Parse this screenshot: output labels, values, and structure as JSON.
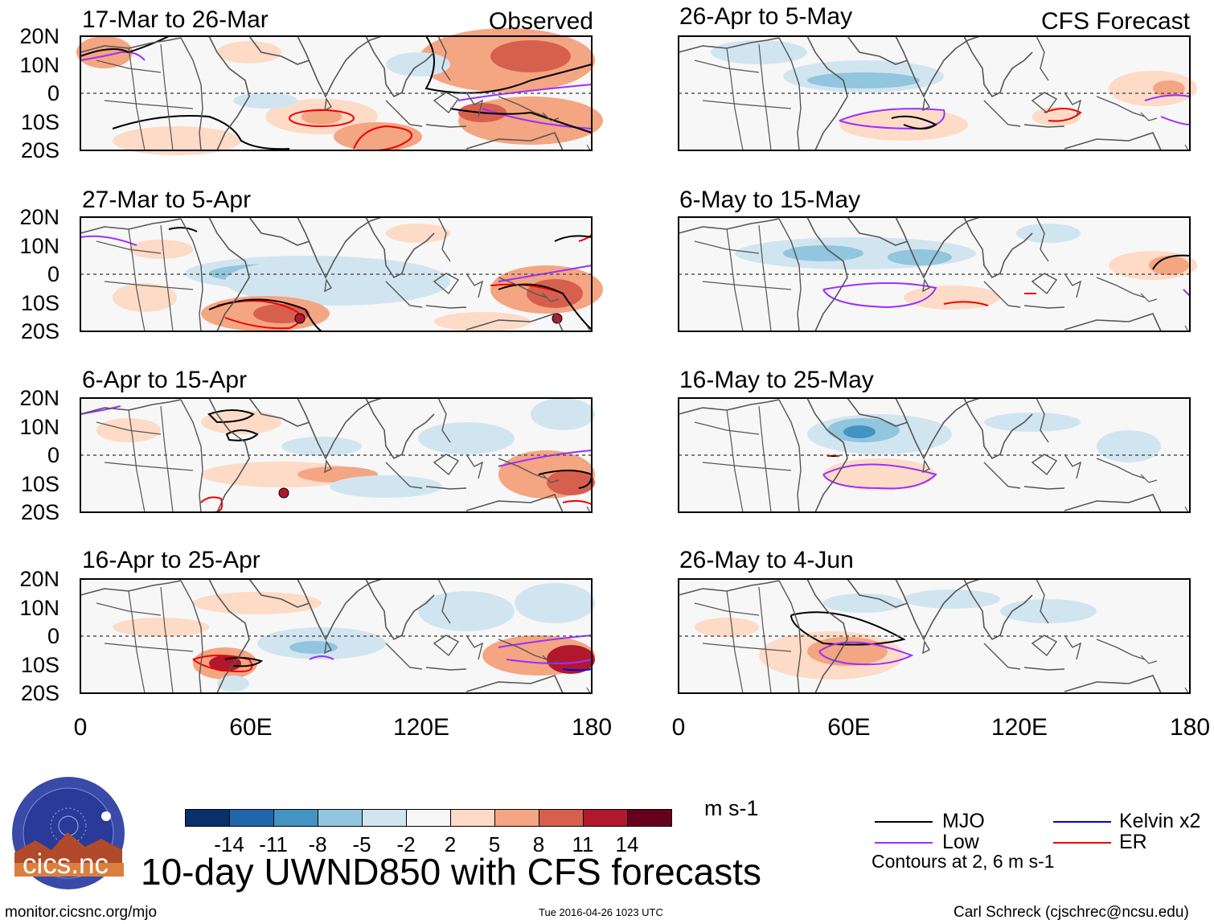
{
  "figure": {
    "title": "10-day UWND850 with CFS forecasts",
    "observed_label": "Observed",
    "forecast_label": "CFS Forecast"
  },
  "panels_observed": [
    {
      "period": "17-Mar to 26-Mar"
    },
    {
      "period": "27-Mar to 5-Apr"
    },
    {
      "period": "6-Apr to 15-Apr"
    },
    {
      "period": "16-Apr to 25-Apr"
    }
  ],
  "panels_forecast": [
    {
      "period": "26-Apr to 5-May"
    },
    {
      "period": "6-May to 15-May"
    },
    {
      "period": "16-May to 25-May"
    },
    {
      "period": "26-May to 4-Jun"
    }
  ],
  "axes": {
    "lat_ticks": [
      "20N",
      "10N",
      "0",
      "10S",
      "20S"
    ],
    "lon_ticks": [
      "0",
      "60E",
      "120E",
      "180"
    ]
  },
  "colorbar": {
    "ticks": [
      "-14",
      "-11",
      "-8",
      "-5",
      "-2",
      "2",
      "5",
      "8",
      "11",
      "14"
    ],
    "units": "m s-1",
    "colors": [
      "#08306b",
      "#2166ac",
      "#4393c3",
      "#92c5de",
      "#d1e5f0",
      "#f7f7f7",
      "#fddbc7",
      "#f4a582",
      "#d6604d",
      "#b2182b",
      "#67001f"
    ]
  },
  "legend": {
    "items": [
      {
        "label": "MJO",
        "color": "#000000"
      },
      {
        "label": "Low",
        "color": "#9b30ff"
      },
      {
        "label": "Kelvin x2",
        "color": "#0000ee"
      },
      {
        "label": "ER",
        "color": "#ee0000"
      }
    ],
    "note": "Contours at 2, 6 m s-1"
  },
  "logo": {
    "text": "cics.nc",
    "ring_text": "Cooperative Institute for Climate and Satellites"
  },
  "footer": {
    "url": "monitor.cicsnc.org/mjo",
    "timestamp": "Tue 2016-04-26 1023 UTC",
    "author": "Carl Schreck (cjschrec@ncsu.edu)"
  }
}
